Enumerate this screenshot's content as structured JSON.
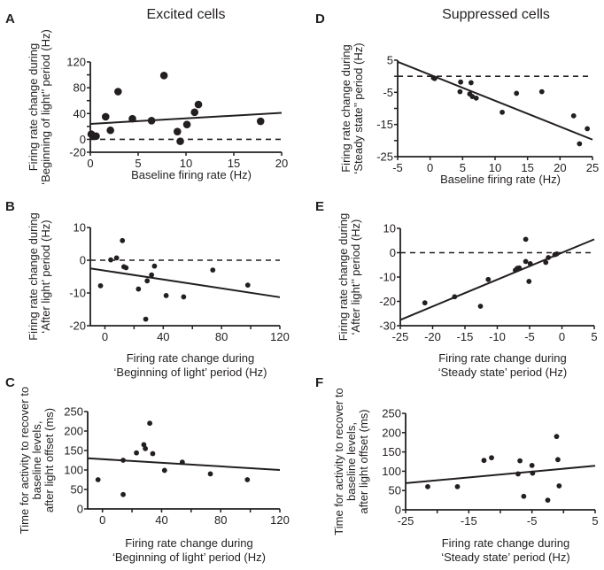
{
  "column_titles": {
    "left": "Excited cells",
    "right": "Suppressed cells"
  },
  "chart_data": [
    {
      "id": "A",
      "type": "scatter",
      "title": "",
      "xlabel": [
        "Baseline firing rate (Hz)"
      ],
      "ylabel": [
        "Firing rate change during",
        "‘Beginning of light’’ period (Hz)"
      ],
      "xlim": [
        0,
        20
      ],
      "ylim": [
        -20,
        120
      ],
      "xticks": [
        0,
        5,
        10,
        15,
        20
      ],
      "yticks": [
        -20,
        0,
        40,
        80,
        120
      ],
      "x_minor_ticks": [],
      "y_minor_ticks": [
        20,
        60,
        100
      ],
      "points": [
        [
          0.1,
          8
        ],
        [
          0.3,
          5
        ],
        [
          0.6,
          5
        ],
        [
          1.6,
          35
        ],
        [
          2.1,
          14
        ],
        [
          2.9,
          74
        ],
        [
          4.4,
          32
        ],
        [
          6.4,
          29
        ],
        [
          7.7,
          99
        ],
        [
          9.1,
          12
        ],
        [
          9.4,
          -3
        ],
        [
          10.1,
          23
        ],
        [
          10.9,
          42
        ],
        [
          11.3,
          54
        ],
        [
          17.8,
          28
        ]
      ],
      "point_size": "large",
      "fit_line": [
        [
          0,
          24
        ],
        [
          20,
          41
        ]
      ],
      "zero_line": 0
    },
    {
      "id": "B",
      "type": "scatter",
      "title": "",
      "xlabel": [
        "Firing rate change during",
        "‘Beginning of light’ period (Hz)"
      ],
      "ylabel": [
        "Firing rate change during",
        "‘After light’ period (Hz)"
      ],
      "xlim": [
        -10,
        120
      ],
      "ylim": [
        -20,
        10
      ],
      "xticks": [
        0,
        40,
        80,
        120
      ],
      "yticks": [
        -20,
        -10,
        0,
        10
      ],
      "x_minor_ticks": [
        20,
        60,
        100
      ],
      "y_minor_ticks": [],
      "points": [
        [
          -3,
          -7.8
        ],
        [
          4,
          0.1
        ],
        [
          8,
          0.7
        ],
        [
          12,
          6
        ],
        [
          13,
          -2
        ],
        [
          14.5,
          -2.3
        ],
        [
          23,
          -8.8
        ],
        [
          28,
          -18
        ],
        [
          29,
          -6.3
        ],
        [
          32,
          -4.5
        ],
        [
          34,
          -1.8
        ],
        [
          42,
          -10.8
        ],
        [
          54,
          -11.2
        ],
        [
          74,
          -3
        ],
        [
          98,
          -7.6
        ]
      ],
      "point_size": "small",
      "fit_line": [
        [
          -10,
          -2.5
        ],
        [
          120,
          -11.3
        ]
      ],
      "zero_line": 0
    },
    {
      "id": "C",
      "type": "scatter",
      "title": "",
      "xlabel": [
        "Firing rate change during",
        "‘Beginning of light’ period (Hz)"
      ],
      "ylabel": [
        "Time for activity to recover to",
        "baseline levels,",
        "after light offset (ms)"
      ],
      "xlim": [
        -10,
        120
      ],
      "ylim": [
        0,
        250
      ],
      "xticks": [
        0,
        40,
        80,
        120
      ],
      "yticks": [
        0,
        50,
        100,
        150,
        200,
        250
      ],
      "x_minor_ticks": [
        20,
        60,
        100
      ],
      "y_minor_ticks": [],
      "points": [
        [
          -3,
          75
        ],
        [
          14,
          37
        ],
        [
          14,
          125
        ],
        [
          23,
          144
        ],
        [
          28,
          165
        ],
        [
          29,
          155
        ],
        [
          32,
          220
        ],
        [
          34,
          142
        ],
        [
          42,
          99
        ],
        [
          54,
          120
        ],
        [
          73,
          90
        ],
        [
          98,
          75
        ]
      ],
      "point_size": "small",
      "fit_line": [
        [
          -10,
          130
        ],
        [
          120,
          100
        ]
      ],
      "zero_line": null
    },
    {
      "id": "D",
      "type": "scatter",
      "title": "",
      "xlabel": [
        "Baseline firing rate (Hz)"
      ],
      "ylabel": [
        "Firing rate change during",
        "‘Steady state’’ period (Hz)"
      ],
      "xlim": [
        -5,
        25
      ],
      "ylim": [
        -25,
        5
      ],
      "xticks": [
        -5,
        0,
        5,
        10,
        15,
        20,
        25
      ],
      "yticks": [
        -25,
        -15,
        -5,
        5
      ],
      "x_minor_ticks": [],
      "y_minor_ticks": [
        -20,
        -10,
        0
      ],
      "points": [
        [
          0.5,
          -0.5
        ],
        [
          0.7,
          -0.7
        ],
        [
          4.6,
          -4.8
        ],
        [
          4.7,
          -1.8
        ],
        [
          6.1,
          -5.5
        ],
        [
          6.3,
          -2
        ],
        [
          6.5,
          -6.3
        ],
        [
          7.1,
          -6.8
        ],
        [
          11.1,
          -11.2
        ],
        [
          13.3,
          -5.3
        ],
        [
          17.2,
          -4.8
        ],
        [
          22.1,
          -12.3
        ],
        [
          23.0,
          -21
        ],
        [
          24.2,
          -16.3
        ]
      ],
      "point_size": "small",
      "fit_line": [
        [
          -5,
          4.5
        ],
        [
          25,
          -19.7
        ]
      ],
      "zero_line": 0
    },
    {
      "id": "E",
      "type": "scatter",
      "title": "",
      "xlabel": [
        "Firing rate change during",
        "‘Steady state’ period (Hz)"
      ],
      "ylabel": [
        "Firing rate change during",
        "‘After light’’ period (Hz)"
      ],
      "xlim": [
        -25,
        5
      ],
      "ylim": [
        -30,
        10
      ],
      "xticks": [
        -25,
        -20,
        -15,
        -10,
        -5,
        0,
        5
      ],
      "yticks": [
        -30,
        -20,
        -10,
        0,
        10
      ],
      "x_minor_ticks": [],
      "y_minor_ticks": [],
      "points": [
        [
          -21.2,
          -20.6
        ],
        [
          -16.6,
          -18.1
        ],
        [
          -12.6,
          -22
        ],
        [
          -11.4,
          -11
        ],
        [
          -7.2,
          -7.2
        ],
        [
          -6.9,
          -6.4
        ],
        [
          -6.6,
          -6.3
        ],
        [
          -5.6,
          5.5
        ],
        [
          -5.6,
          -3.6
        ],
        [
          -5.1,
          -11.8
        ],
        [
          -4.9,
          -4.5
        ],
        [
          -2.5,
          -4
        ],
        [
          -2.1,
          -2
        ],
        [
          -1.1,
          -0.8
        ],
        [
          -0.8,
          -0.5
        ]
      ],
      "point_size": "small",
      "fit_line": [
        [
          -25,
          -27.6
        ],
        [
          5,
          5.5
        ]
      ],
      "zero_line": 0
    },
    {
      "id": "F",
      "type": "scatter",
      "title": "",
      "xlabel": [
        "Firing rate change during",
        "‘Steady state’ period (Hz)"
      ],
      "ylabel": [
        "Time for activity to recover to",
        "baseline levels,",
        "after light offset (ms)"
      ],
      "xlim": [
        -25,
        5
      ],
      "ylim": [
        0,
        250
      ],
      "xticks": [
        -25,
        -15,
        -5,
        5
      ],
      "yticks": [
        0,
        50,
        100,
        150,
        200,
        250
      ],
      "x_minor_ticks": [
        -20,
        -10,
        0
      ],
      "y_minor_ticks": [],
      "points": [
        [
          -21.5,
          60
        ],
        [
          -16.8,
          60
        ],
        [
          -12.6,
          128
        ],
        [
          -11.4,
          135
        ],
        [
          -7.2,
          93
        ],
        [
          -6.9,
          127
        ],
        [
          -6.3,
          35
        ],
        [
          -5.0,
          115
        ],
        [
          -4.9,
          95
        ],
        [
          -2.5,
          25
        ],
        [
          -1.1,
          190
        ],
        [
          -0.9,
          130
        ],
        [
          -0.7,
          62
        ]
      ],
      "point_size": "small",
      "fit_line": [
        [
          -25,
          69
        ],
        [
          5,
          114
        ]
      ],
      "zero_line": null
    }
  ]
}
